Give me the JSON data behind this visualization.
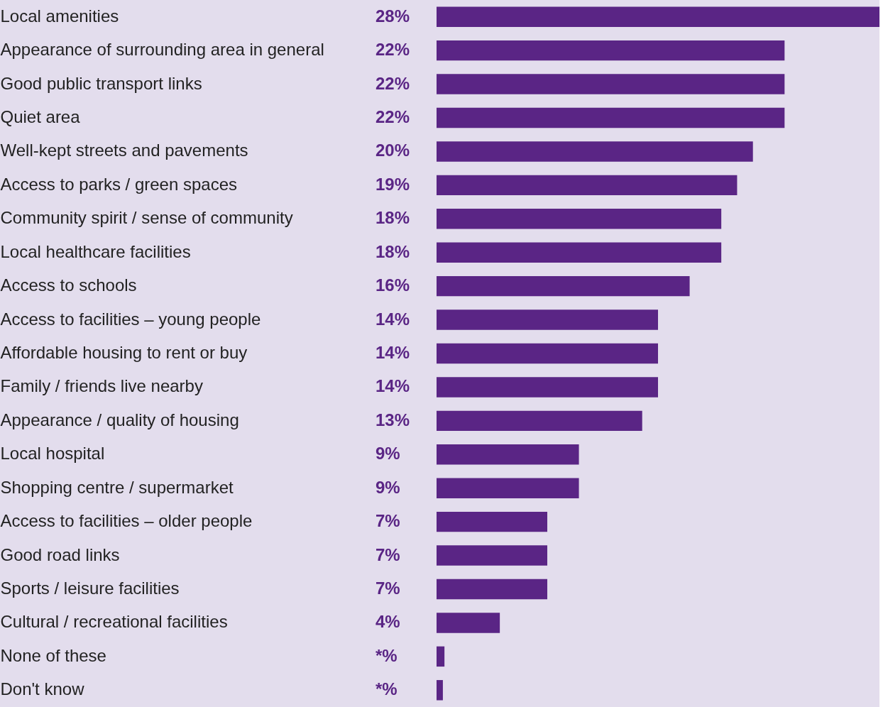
{
  "chart_data": {
    "type": "bar",
    "orientation": "horizontal",
    "categories": [
      "Local amenities",
      "Appearance of surrounding area in general",
      "Good public transport links",
      "Quiet area",
      "Well-kept streets and pavements",
      "Access to parks / green spaces",
      "Community spirit / sense of community",
      "Local healthcare facilities",
      "Access to schools",
      "Access to facilities – young people",
      "Affordable housing to rent or buy",
      "Family / friends live nearby",
      "Appearance / quality of housing",
      "Local hospital",
      "Shopping centre / supermarket",
      "Access to facilities – older people",
      "Good road links",
      "Sports / leisure facilities",
      "Cultural / recreational facilities",
      "None of these",
      "Don't know"
    ],
    "values": [
      28,
      22,
      22,
      22,
      20,
      19,
      18,
      18,
      16,
      14,
      14,
      14,
      13,
      9,
      9,
      7,
      7,
      7,
      4,
      0.5,
      0.4
    ],
    "value_labels": [
      "28%",
      "22%",
      "22%",
      "22%",
      "20%",
      "19%",
      "18%",
      "18%",
      "16%",
      "14%",
      "14%",
      "14%",
      "13%",
      "9%",
      "9%",
      "7%",
      "7%",
      "7%",
      "4%",
      "*%",
      "*%"
    ],
    "color": "#5a2585"
  }
}
